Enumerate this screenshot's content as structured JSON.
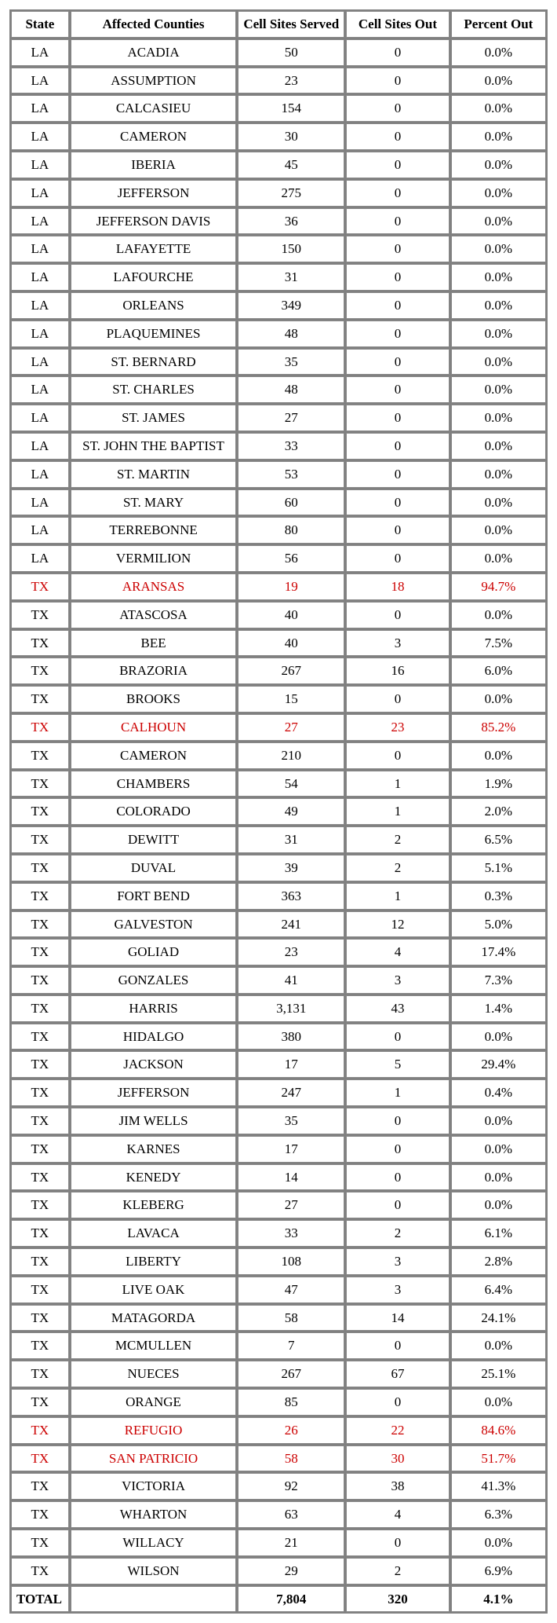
{
  "table": {
    "headers": {
      "state": "State",
      "county": "Affected Counties",
      "served": "Cell Sites Served",
      "out": "Cell Sites Out",
      "pct": "Percent Out"
    },
    "rows": [
      {
        "state": "LA",
        "county": "ACADIA",
        "served": "50",
        "out": "0",
        "pct": "0.0%",
        "highlight": false
      },
      {
        "state": "LA",
        "county": "ASSUMPTION",
        "served": "23",
        "out": "0",
        "pct": "0.0%",
        "highlight": false
      },
      {
        "state": "LA",
        "county": "CALCASIEU",
        "served": "154",
        "out": "0",
        "pct": "0.0%",
        "highlight": false
      },
      {
        "state": "LA",
        "county": "CAMERON",
        "served": "30",
        "out": "0",
        "pct": "0.0%",
        "highlight": false
      },
      {
        "state": "LA",
        "county": "IBERIA",
        "served": "45",
        "out": "0",
        "pct": "0.0%",
        "highlight": false
      },
      {
        "state": "LA",
        "county": "JEFFERSON",
        "served": "275",
        "out": "0",
        "pct": "0.0%",
        "highlight": false
      },
      {
        "state": "LA",
        "county": "JEFFERSON DAVIS",
        "served": "36",
        "out": "0",
        "pct": "0.0%",
        "highlight": false
      },
      {
        "state": "LA",
        "county": "LAFAYETTE",
        "served": "150",
        "out": "0",
        "pct": "0.0%",
        "highlight": false
      },
      {
        "state": "LA",
        "county": "LAFOURCHE",
        "served": "31",
        "out": "0",
        "pct": "0.0%",
        "highlight": false
      },
      {
        "state": "LA",
        "county": "ORLEANS",
        "served": "349",
        "out": "0",
        "pct": "0.0%",
        "highlight": false
      },
      {
        "state": "LA",
        "county": "PLAQUEMINES",
        "served": "48",
        "out": "0",
        "pct": "0.0%",
        "highlight": false
      },
      {
        "state": "LA",
        "county": "ST. BERNARD",
        "served": "35",
        "out": "0",
        "pct": "0.0%",
        "highlight": false
      },
      {
        "state": "LA",
        "county": "ST. CHARLES",
        "served": "48",
        "out": "0",
        "pct": "0.0%",
        "highlight": false
      },
      {
        "state": "LA",
        "county": "ST. JAMES",
        "served": "27",
        "out": "0",
        "pct": "0.0%",
        "highlight": false
      },
      {
        "state": "LA",
        "county": "ST. JOHN THE BAPTIST",
        "served": "33",
        "out": "0",
        "pct": "0.0%",
        "highlight": false
      },
      {
        "state": "LA",
        "county": "ST. MARTIN",
        "served": "53",
        "out": "0",
        "pct": "0.0%",
        "highlight": false
      },
      {
        "state": "LA",
        "county": "ST. MARY",
        "served": "60",
        "out": "0",
        "pct": "0.0%",
        "highlight": false
      },
      {
        "state": "LA",
        "county": "TERREBONNE",
        "served": "80",
        "out": "0",
        "pct": "0.0%",
        "highlight": false
      },
      {
        "state": "LA",
        "county": "VERMILION",
        "served": "56",
        "out": "0",
        "pct": "0.0%",
        "highlight": false
      },
      {
        "state": "TX",
        "county": "ARANSAS",
        "served": "19",
        "out": "18",
        "pct": "94.7%",
        "highlight": true
      },
      {
        "state": "TX",
        "county": "ATASCOSA",
        "served": "40",
        "out": "0",
        "pct": "0.0%",
        "highlight": false
      },
      {
        "state": "TX",
        "county": "BEE",
        "served": "40",
        "out": "3",
        "pct": "7.5%",
        "highlight": false
      },
      {
        "state": "TX",
        "county": "BRAZORIA",
        "served": "267",
        "out": "16",
        "pct": "6.0%",
        "highlight": false
      },
      {
        "state": "TX",
        "county": "BROOKS",
        "served": "15",
        "out": "0",
        "pct": "0.0%",
        "highlight": false
      },
      {
        "state": "TX",
        "county": "CALHOUN",
        "served": "27",
        "out": "23",
        "pct": "85.2%",
        "highlight": true
      },
      {
        "state": "TX",
        "county": "CAMERON",
        "served": "210",
        "out": "0",
        "pct": "0.0%",
        "highlight": false
      },
      {
        "state": "TX",
        "county": "CHAMBERS",
        "served": "54",
        "out": "1",
        "pct": "1.9%",
        "highlight": false
      },
      {
        "state": "TX",
        "county": "COLORADO",
        "served": "49",
        "out": "1",
        "pct": "2.0%",
        "highlight": false
      },
      {
        "state": "TX",
        "county": "DEWITT",
        "served": "31",
        "out": "2",
        "pct": "6.5%",
        "highlight": false
      },
      {
        "state": "TX",
        "county": "DUVAL",
        "served": "39",
        "out": "2",
        "pct": "5.1%",
        "highlight": false
      },
      {
        "state": "TX",
        "county": "FORT BEND",
        "served": "363",
        "out": "1",
        "pct": "0.3%",
        "highlight": false
      },
      {
        "state": "TX",
        "county": "GALVESTON",
        "served": "241",
        "out": "12",
        "pct": "5.0%",
        "highlight": false
      },
      {
        "state": "TX",
        "county": "GOLIAD",
        "served": "23",
        "out": "4",
        "pct": "17.4%",
        "highlight": false
      },
      {
        "state": "TX",
        "county": "GONZALES",
        "served": "41",
        "out": "3",
        "pct": "7.3%",
        "highlight": false
      },
      {
        "state": "TX",
        "county": "HARRIS",
        "served": "3,131",
        "out": "43",
        "pct": "1.4%",
        "highlight": false
      },
      {
        "state": "TX",
        "county": "HIDALGO",
        "served": "380",
        "out": "0",
        "pct": "0.0%",
        "highlight": false
      },
      {
        "state": "TX",
        "county": "JACKSON",
        "served": "17",
        "out": "5",
        "pct": "29.4%",
        "highlight": false
      },
      {
        "state": "TX",
        "county": "JEFFERSON",
        "served": "247",
        "out": "1",
        "pct": "0.4%",
        "highlight": false
      },
      {
        "state": "TX",
        "county": "JIM WELLS",
        "served": "35",
        "out": "0",
        "pct": "0.0%",
        "highlight": false
      },
      {
        "state": "TX",
        "county": "KARNES",
        "served": "17",
        "out": "0",
        "pct": "0.0%",
        "highlight": false
      },
      {
        "state": "TX",
        "county": "KENEDY",
        "served": "14",
        "out": "0",
        "pct": "0.0%",
        "highlight": false
      },
      {
        "state": "TX",
        "county": "KLEBERG",
        "served": "27",
        "out": "0",
        "pct": "0.0%",
        "highlight": false
      },
      {
        "state": "TX",
        "county": "LAVACA",
        "served": "33",
        "out": "2",
        "pct": "6.1%",
        "highlight": false
      },
      {
        "state": "TX",
        "county": "LIBERTY",
        "served": "108",
        "out": "3",
        "pct": "2.8%",
        "highlight": false
      },
      {
        "state": "TX",
        "county": "LIVE OAK",
        "served": "47",
        "out": "3",
        "pct": "6.4%",
        "highlight": false
      },
      {
        "state": "TX",
        "county": "MATAGORDA",
        "served": "58",
        "out": "14",
        "pct": "24.1%",
        "highlight": false
      },
      {
        "state": "TX",
        "county": "MCMULLEN",
        "served": "7",
        "out": "0",
        "pct": "0.0%",
        "highlight": false
      },
      {
        "state": "TX",
        "county": "NUECES",
        "served": "267",
        "out": "67",
        "pct": "25.1%",
        "highlight": false
      },
      {
        "state": "TX",
        "county": "ORANGE",
        "served": "85",
        "out": "0",
        "pct": "0.0%",
        "highlight": false
      },
      {
        "state": "TX",
        "county": "REFUGIO",
        "served": "26",
        "out": "22",
        "pct": "84.6%",
        "highlight": true
      },
      {
        "state": "TX",
        "county": "SAN PATRICIO",
        "served": "58",
        "out": "30",
        "pct": "51.7%",
        "highlight": true
      },
      {
        "state": "TX",
        "county": "VICTORIA",
        "served": "92",
        "out": "38",
        "pct": "41.3%",
        "highlight": false
      },
      {
        "state": "TX",
        "county": "WHARTON",
        "served": "63",
        "out": "4",
        "pct": "6.3%",
        "highlight": false
      },
      {
        "state": "TX",
        "county": "WILLACY",
        "served": "21",
        "out": "0",
        "pct": "0.0%",
        "highlight": false
      },
      {
        "state": "TX",
        "county": "WILSON",
        "served": "29",
        "out": "2",
        "pct": "6.9%",
        "highlight": false
      }
    ],
    "total": {
      "label": "TOTAL",
      "county": "",
      "served": "7,804",
      "out": "320",
      "pct": "4.1%"
    },
    "highlight_color": "#cc0000",
    "text_color": "#000000",
    "border_color": "#888888",
    "background_color": "#ffffff",
    "font_family": "Times New Roman",
    "font_size_pt": 13
  }
}
